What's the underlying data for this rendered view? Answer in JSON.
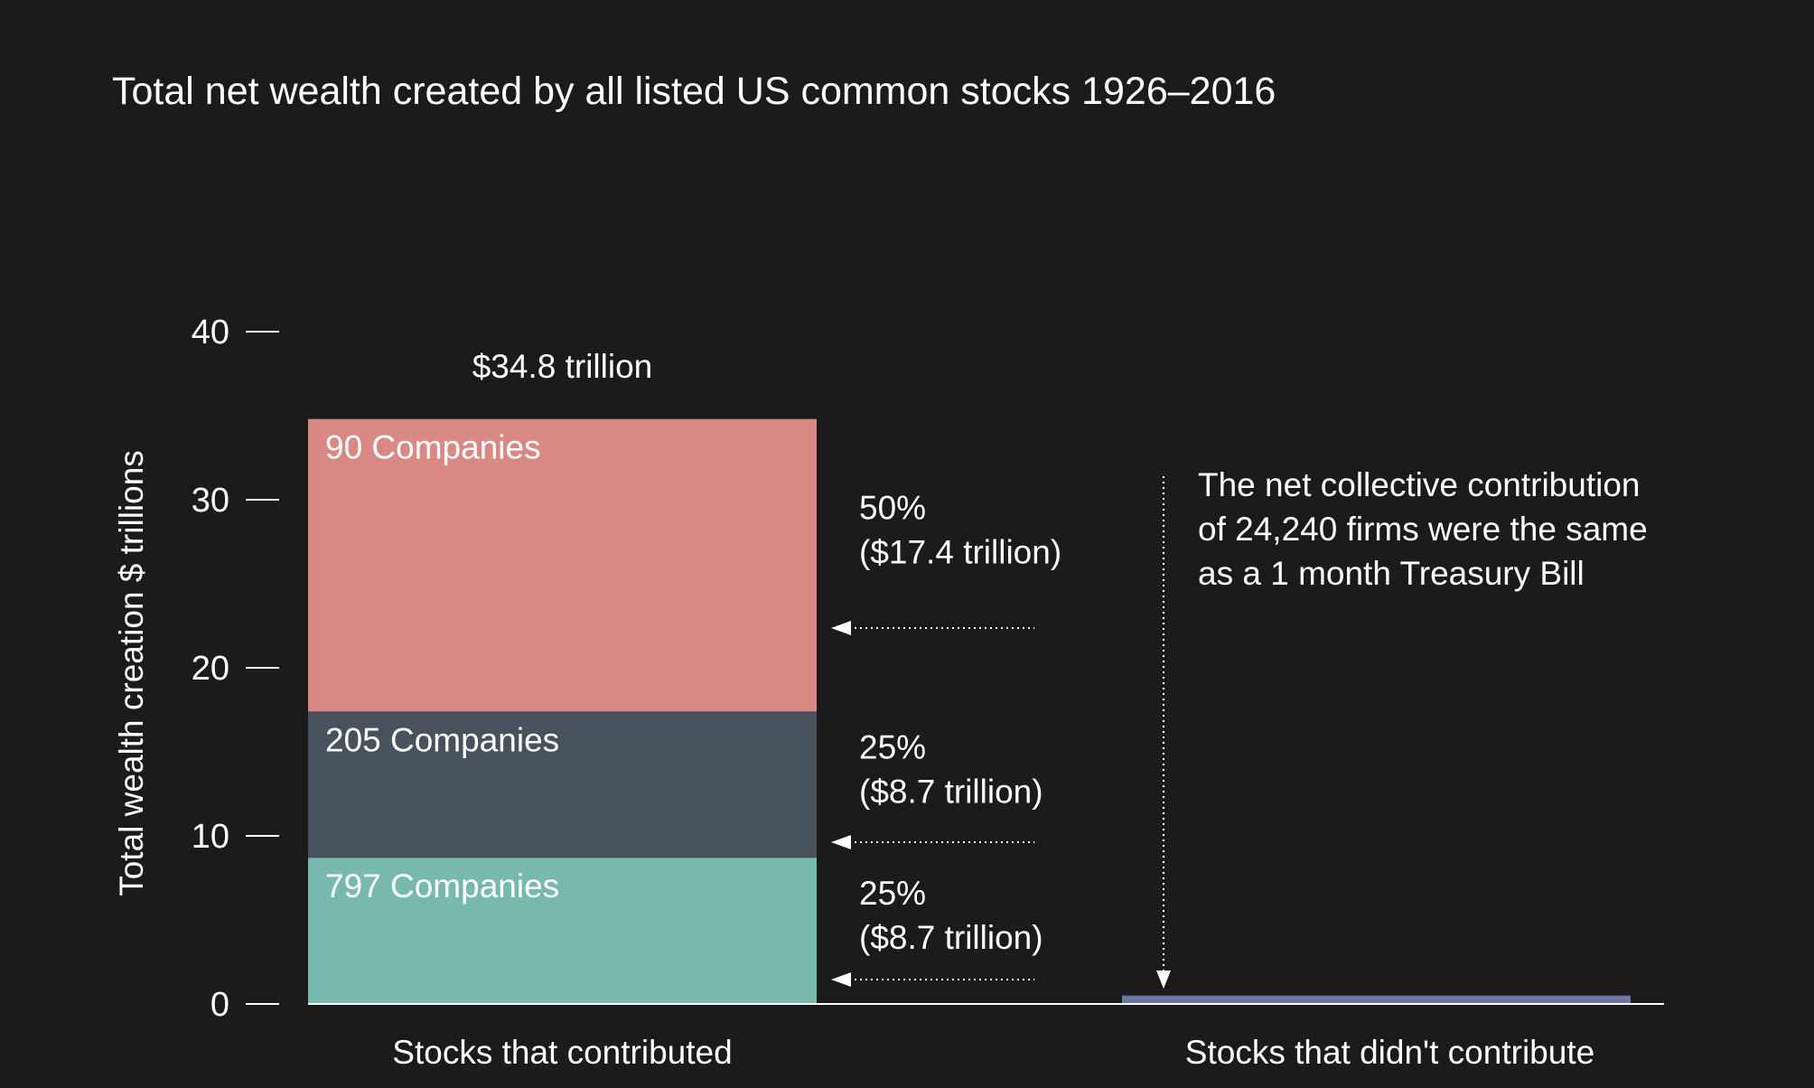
{
  "chart_data": {
    "type": "bar",
    "stacked": true,
    "title": "Total net wealth created by all listed US common stocks 1926–2016",
    "xlabel": "",
    "ylabel": "Total wealth creation $ trillions",
    "ylim": [
      0,
      40
    ],
    "yticks": [
      "0",
      "10",
      "20",
      "30",
      "40"
    ],
    "categories": [
      "Stocks that contributed",
      "Stocks that didn't contribute"
    ],
    "total_label": "$34.8 trillion",
    "segments": [
      {
        "label": "797 Companies",
        "value": 8.7,
        "share": "25%",
        "amount": "($8.7 trillion)",
        "color": "#77b9ac"
      },
      {
        "label": "205 Companies",
        "value": 8.7,
        "share": "25%",
        "amount": "($8.7 trillion)",
        "color": "#47525c"
      },
      {
        "label": "90 Companies",
        "value": 17.4,
        "share": "50%",
        "amount": "($17.4 trillion)",
        "color": "#d98884"
      }
    ],
    "non_contributing": {
      "value": 0.5,
      "color": "#6b76a3"
    },
    "annotation": [
      "The net collective contribution",
      "of 24,240 firms were the same",
      "as a 1 month Treasury Bill"
    ],
    "grid": false,
    "legend": "none"
  }
}
